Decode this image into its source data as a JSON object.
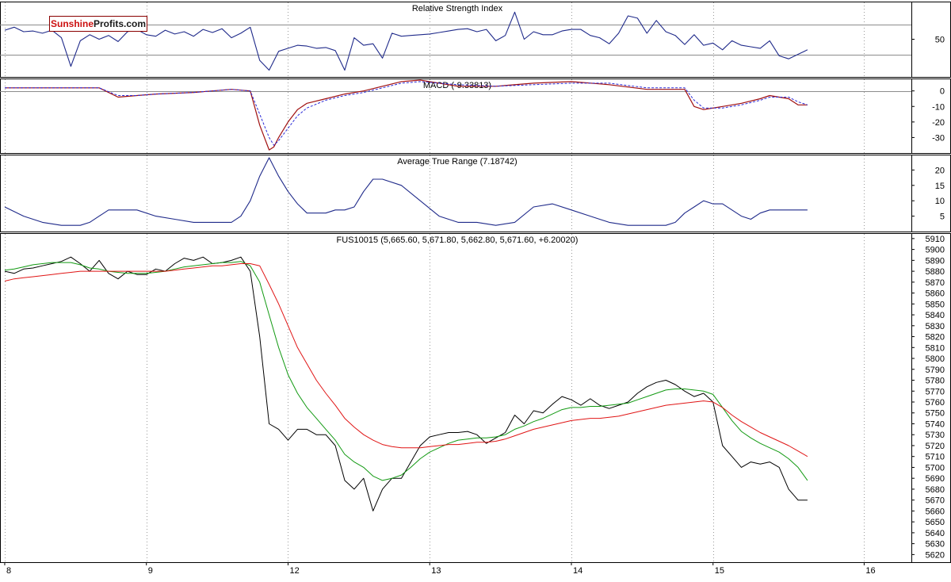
{
  "logo": {
    "part1": "Sunshine",
    "part2": "Profits.com"
  },
  "chart_data": [
    {
      "type": "line",
      "title": "Relative Strength Index",
      "ylim": [
        0,
        100
      ],
      "yticks": [
        50
      ],
      "reference_lines": [
        30,
        70
      ],
      "x": [
        0,
        2,
        4,
        6,
        8,
        10,
        12,
        14,
        16,
        18,
        20,
        22,
        24,
        26,
        28,
        30,
        32,
        34,
        36,
        38,
        40,
        42,
        44,
        46,
        48,
        50,
        52,
        54,
        56,
        58,
        60,
        62,
        64,
        66,
        68,
        70,
        72,
        74,
        76,
        78,
        80,
        82,
        84,
        86,
        88,
        90,
        92,
        94,
        96,
        98,
        100,
        102,
        104,
        106,
        108,
        110,
        112,
        114,
        116,
        118,
        120,
        122,
        124,
        126,
        128,
        130,
        132,
        134,
        136,
        138,
        140,
        142,
        144,
        146,
        148,
        150,
        152,
        154,
        156,
        158,
        160,
        162,
        164,
        166,
        168,
        170
      ],
      "series": [
        {
          "name": "",
          "values": [
            62,
            66,
            60,
            61,
            58,
            62,
            52,
            14,
            48,
            56,
            50,
            55,
            47,
            60,
            63,
            56,
            54,
            62,
            57,
            60,
            54,
            63,
            59,
            64,
            52,
            58,
            66,
            22,
            9,
            34,
            38,
            42,
            41,
            38,
            39,
            35,
            9,
            52,
            42,
            44,
            25,
            58,
            54,
            55,
            56,
            57,
            59,
            61,
            63,
            64,
            60,
            63,
            48,
            55,
            86,
            50,
            60,
            56,
            56,
            61,
            63,
            63,
            55,
            52,
            44,
            58,
            81,
            78,
            58,
            75,
            60,
            55,
            43,
            56,
            42,
            45,
            36,
            48,
            42,
            40,
            38,
            48,
            28,
            24,
            30,
            36
          ]
        }
      ]
    },
    {
      "type": "line",
      "title": "MACD (-9.33813)",
      "ylim": [
        -40,
        8
      ],
      "yticks": [
        0,
        -10,
        -20,
        -30
      ],
      "reference_lines": [
        0
      ],
      "x": [
        0,
        8,
        16,
        20,
        24,
        28,
        32,
        40,
        48,
        52,
        54,
        56,
        57,
        58,
        60,
        62,
        64,
        68,
        72,
        76,
        80,
        84,
        88,
        96,
        104,
        112,
        120,
        128,
        136,
        144,
        146,
        148,
        152,
        156,
        160,
        162,
        166,
        168,
        170
      ],
      "series": [
        {
          "name": "",
          "values": [
            2,
            2,
            2,
            2,
            -4,
            -3,
            -2,
            -1,
            1,
            0,
            -22,
            -38,
            -36,
            -30,
            -20,
            -12,
            -8,
            -5,
            -2,
            0,
            3,
            6,
            7,
            3,
            3,
            5,
            6,
            4,
            1,
            1,
            -10,
            -12,
            -10,
            -8,
            -5,
            -3,
            -5,
            -9,
            -9
          ]
        },
        {
          "name": "",
          "values": [
            2,
            2,
            2,
            2,
            -3,
            -3,
            -2,
            -1,
            1,
            0,
            -15,
            -30,
            -35,
            -32,
            -24,
            -16,
            -11,
            -6,
            -3,
            -1,
            2,
            5,
            6,
            4,
            3,
            4,
            5,
            5,
            2,
            2,
            -6,
            -11,
            -11,
            -9,
            -6,
            -4,
            -4,
            -7,
            -9
          ]
        }
      ]
    },
    {
      "type": "line",
      "title": "Average True Range (7.18742)",
      "ylim": [
        0,
        25
      ],
      "yticks": [
        20,
        15,
        10,
        5
      ],
      "x": [
        0,
        4,
        8,
        12,
        16,
        18,
        20,
        22,
        24,
        28,
        32,
        36,
        40,
        44,
        48,
        50,
        52,
        54,
        56,
        58,
        60,
        62,
        64,
        68,
        70,
        72,
        74,
        76,
        78,
        80,
        84,
        88,
        92,
        96,
        100,
        104,
        108,
        112,
        116,
        120,
        124,
        128,
        132,
        136,
        140,
        142,
        144,
        146,
        148,
        150,
        152,
        154,
        156,
        158,
        160,
        162,
        164,
        166,
        168,
        170
      ],
      "series": [
        {
          "name": "",
          "values": [
            8,
            5,
            3,
            2,
            2,
            3,
            5,
            7,
            7,
            7,
            5,
            4,
            3,
            3,
            3,
            5,
            10,
            18,
            24,
            18,
            13,
            9,
            6,
            6,
            7,
            7,
            8,
            13,
            17,
            17,
            15,
            10,
            5,
            3,
            3,
            2,
            3,
            8,
            9,
            7,
            5,
            3,
            2,
            2,
            2,
            3,
            6,
            8,
            10,
            9,
            9,
            7,
            5,
            4,
            6,
            7,
            7,
            7,
            7,
            7
          ]
        }
      ]
    },
    {
      "type": "line",
      "title": "FUS10015 (5,665.60, 5,671.80, 5,662.80, 5,671.60, +6.20020)",
      "ylim": [
        5613,
        5915
      ],
      "yticks": [
        5910,
        5900,
        5890,
        5880,
        5870,
        5860,
        5850,
        5840,
        5830,
        5820,
        5810,
        5800,
        5790,
        5780,
        5770,
        5760,
        5750,
        5740,
        5730,
        5720,
        5710,
        5700,
        5690,
        5680,
        5670,
        5660,
        5650,
        5640,
        5630,
        5620
      ],
      "xticks": [
        {
          "label": "8",
          "x": 0
        },
        {
          "label": "9",
          "x": 30
        },
        {
          "label": "12",
          "x": 60
        },
        {
          "label": "13",
          "x": 90
        },
        {
          "label": "14",
          "x": 120
        },
        {
          "label": "15",
          "x": 150
        },
        {
          "label": "16",
          "x": 182
        }
      ],
      "xlim": [
        -1,
        192
      ],
      "x": [
        0,
        2,
        4,
        6,
        8,
        10,
        12,
        14,
        16,
        18,
        20,
        22,
        24,
        26,
        28,
        30,
        32,
        34,
        36,
        38,
        40,
        42,
        44,
        46,
        48,
        50,
        52,
        54,
        56,
        58,
        60,
        62,
        64,
        66,
        68,
        70,
        72,
        74,
        76,
        78,
        80,
        82,
        84,
        86,
        88,
        90,
        92,
        94,
        96,
        98,
        100,
        102,
        104,
        106,
        108,
        110,
        112,
        114,
        116,
        118,
        120,
        122,
        124,
        126,
        128,
        130,
        132,
        134,
        136,
        138,
        140,
        142,
        144,
        146,
        148,
        150,
        152,
        154,
        156,
        158,
        160,
        162,
        164,
        166,
        168,
        170
      ],
      "series": [
        {
          "name": "",
          "values": [
            5880,
            5878,
            5882,
            5883,
            5885,
            5887,
            5889,
            5893,
            5887,
            5880,
            5890,
            5878,
            5873,
            5880,
            5877,
            5877,
            5882,
            5880,
            5887,
            5892,
            5890,
            5893,
            5887,
            5888,
            5890,
            5893,
            5880,
            5820,
            5740,
            5735,
            5725,
            5735,
            5735,
            5730,
            5730,
            5720,
            5688,
            5680,
            5690,
            5660,
            5680,
            5690,
            5690,
            5705,
            5720,
            5728,
            5730,
            5732,
            5732,
            5733,
            5730,
            5722,
            5727,
            5732,
            5748,
            5740,
            5752,
            5750,
            5758,
            5765,
            5762,
            5757,
            5763,
            5757,
            5754,
            5757,
            5760,
            5768,
            5774,
            5778,
            5780,
            5776,
            5770,
            5765,
            5768,
            5760,
            5720,
            5710,
            5700,
            5705,
            5703,
            5705,
            5700,
            5680,
            5670,
            5670
          ]
        },
        {
          "name": "",
          "values": [
            5881,
            5882,
            5884,
            5886,
            5887,
            5888,
            5888,
            5888,
            5886,
            5883,
            5882,
            5880,
            5879,
            5878,
            5878,
            5878,
            5879,
            5880,
            5882,
            5884,
            5885,
            5886,
            5887,
            5888,
            5888,
            5889,
            5885,
            5870,
            5840,
            5810,
            5785,
            5768,
            5755,
            5745,
            5735,
            5725,
            5712,
            5705,
            5700,
            5692,
            5688,
            5690,
            5693,
            5700,
            5708,
            5714,
            5718,
            5722,
            5725,
            5726,
            5727,
            5727,
            5728,
            5730,
            5735,
            5738,
            5742,
            5745,
            5749,
            5753,
            5755,
            5755,
            5756,
            5756,
            5757,
            5758,
            5759,
            5762,
            5765,
            5768,
            5771,
            5772,
            5772,
            5771,
            5770,
            5767,
            5755,
            5743,
            5733,
            5727,
            5722,
            5718,
            5714,
            5708,
            5700,
            5688
          ]
        },
        {
          "name": "",
          "values": [
            5871,
            5873,
            5874,
            5875,
            5876,
            5877,
            5878,
            5879,
            5880,
            5880,
            5880,
            5880,
            5880,
            5880,
            5880,
            5880,
            5880,
            5880,
            5881,
            5882,
            5883,
            5884,
            5885,
            5885,
            5886,
            5887,
            5887,
            5885,
            5868,
            5850,
            5830,
            5810,
            5795,
            5780,
            5768,
            5757,
            5745,
            5737,
            5730,
            5725,
            5721,
            5719,
            5718,
            5718,
            5718,
            5719,
            5720,
            5721,
            5721,
            5722,
            5723,
            5723,
            5724,
            5726,
            5729,
            5732,
            5735,
            5737,
            5739,
            5741,
            5743,
            5744,
            5745,
            5745,
            5746,
            5747,
            5749,
            5751,
            5753,
            5755,
            5757,
            5758,
            5759,
            5760,
            5761,
            5760,
            5755,
            5748,
            5742,
            5737,
            5732,
            5728,
            5724,
            5720,
            5715,
            5710
          ]
        }
      ]
    }
  ]
}
